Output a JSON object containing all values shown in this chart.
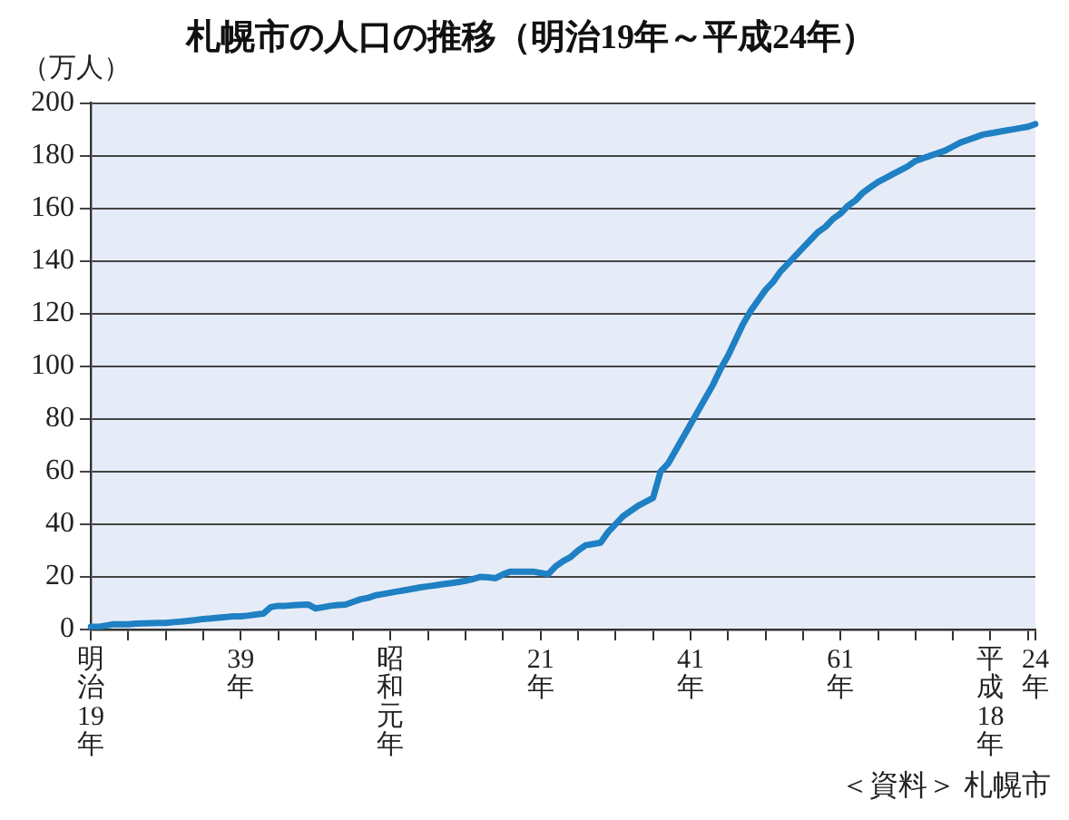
{
  "chart_data": {
    "type": "line",
    "title": "札幌市の人口の推移（明治19年～平成24年）",
    "ylabel": "（万人）",
    "annotations": [
      "＜資料＞ 札幌市"
    ],
    "categories": [
      "明治19年",
      null,
      null,
      null,
      null,
      null,
      null,
      null,
      null,
      null,
      null,
      null,
      null,
      null,
      null,
      null,
      null,
      null,
      null,
      null,
      "39年",
      null,
      null,
      null,
      null,
      null,
      null,
      null,
      null,
      null,
      null,
      null,
      null,
      null,
      null,
      null,
      null,
      null,
      null,
      null,
      "昭和元年",
      null,
      null,
      null,
      null,
      null,
      null,
      null,
      null,
      null,
      null,
      null,
      null,
      null,
      null,
      null,
      null,
      null,
      null,
      null,
      "21年",
      null,
      null,
      null,
      null,
      null,
      null,
      null,
      null,
      null,
      null,
      null,
      null,
      null,
      null,
      null,
      null,
      null,
      null,
      null,
      "41年",
      null,
      null,
      null,
      null,
      null,
      null,
      null,
      null,
      null,
      null,
      null,
      null,
      null,
      null,
      null,
      null,
      null,
      null,
      null,
      "61年",
      null,
      null,
      null,
      null,
      null,
      null,
      null,
      null,
      null,
      null,
      null,
      null,
      null,
      null,
      null,
      null,
      null,
      null,
      null,
      "平成18年",
      null,
      null,
      null,
      null,
      null,
      "24年"
    ],
    "series": [
      {
        "color": "#1f80c3",
        "values": [
          1,
          1,
          1.5,
          2,
          2,
          2,
          2.2,
          2.3,
          2.4,
          2.5,
          2.5,
          2.8,
          3,
          3.3,
          3.6,
          4,
          4.2,
          4.5,
          4.7,
          5,
          5,
          5.3,
          5.7,
          6,
          8.5,
          9,
          9,
          9.2,
          9.4,
          9.5,
          8,
          8.5,
          9,
          9.3,
          9.5,
          10.5,
          11.5,
          12,
          13,
          13.5,
          14,
          14.5,
          15,
          15.5,
          16,
          16.4,
          16.8,
          17.2,
          17.6,
          18,
          18.5,
          19.2,
          20,
          19.8,
          19.5,
          21,
          22,
          22,
          22,
          22,
          21.5,
          21,
          24,
          26,
          27.5,
          30,
          32,
          32.5,
          33,
          37,
          40,
          43,
          45,
          47,
          48.5,
          50,
          60,
          63,
          68,
          73,
          78,
          83,
          88,
          93,
          99,
          104,
          110,
          116,
          121,
          125,
          129,
          132,
          136,
          139,
          142,
          145,
          148,
          151,
          153,
          156,
          158,
          161,
          163,
          166,
          168,
          170,
          171.5,
          173,
          174.5,
          176,
          178,
          179,
          180,
          181,
          182,
          183.5,
          185,
          186,
          187,
          188,
          188.5,
          189,
          189.5,
          190,
          190.5,
          191,
          192
        ]
      }
    ],
    "ylim": [
      0,
      200
    ],
    "yticks": [
      0,
      20,
      40,
      60,
      80,
      100,
      120,
      140,
      160,
      180,
      200
    ],
    "grid": "y",
    "legend": false,
    "marker": "none",
    "line_style": "solid"
  }
}
